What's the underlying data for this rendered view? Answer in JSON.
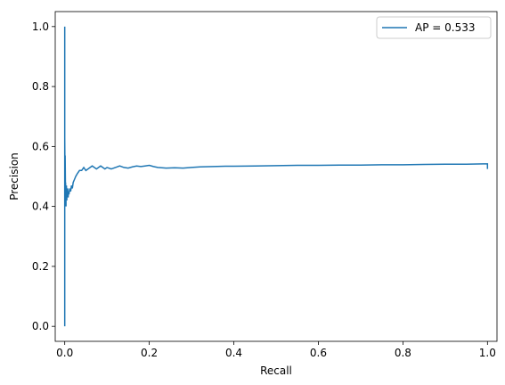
{
  "chart_data": {
    "type": "line",
    "title": "",
    "xlabel": "Recall",
    "ylabel": "Precision",
    "xlim": [
      -0.0225,
      1.0225
    ],
    "ylim": [
      -0.05,
      1.05
    ],
    "xticks": [
      0.0,
      0.2,
      0.4,
      0.6,
      0.8,
      1.0
    ],
    "xtick_labels": [
      "0.0",
      "0.2",
      "0.4",
      "0.6",
      "0.8",
      "1.0"
    ],
    "yticks": [
      0.0,
      0.2,
      0.4,
      0.6,
      0.8,
      1.0
    ],
    "ytick_labels": [
      "0.0",
      "0.2",
      "0.4",
      "0.6",
      "0.8",
      "1.0"
    ],
    "grid": false,
    "legend": {
      "position": "top-right",
      "entries": [
        "AP = 0.533"
      ]
    },
    "series": [
      {
        "name": "AP = 0.533",
        "color": "#1f77b4",
        "x": [
          0,
          0,
          0,
          0,
          0.001,
          0.001,
          0.002,
          0.002,
          0.003,
          0.003,
          0.004,
          0.004,
          0.005,
          0.005,
          0.006,
          0.007,
          0.008,
          0.009,
          0.01,
          0.012,
          0.014,
          0.016,
          0.018,
          0.02,
          0.023,
          0.026,
          0.03,
          0.035,
          0.04,
          0.045,
          0.05,
          0.055,
          0.06,
          0.065,
          0.07,
          0.075,
          0.08,
          0.085,
          0.09,
          0.095,
          0.1,
          0.11,
          0.12,
          0.13,
          0.14,
          0.15,
          0.16,
          0.17,
          0.18,
          0.19,
          0.2,
          0.21,
          0.22,
          0.24,
          0.26,
          0.28,
          0.3,
          0.32,
          0.35,
          0.38,
          0.4,
          0.45,
          0.5,
          0.55,
          0.6,
          0.65,
          0.7,
          0.75,
          0.8,
          0.85,
          0.9,
          0.95,
          0.99,
          1.0,
          1.0
        ],
        "y": [
          1.0,
          0.0,
          0.5,
          0.63,
          0.45,
          0.57,
          0.42,
          0.48,
          0.4,
          0.46,
          0.43,
          0.47,
          0.42,
          0.45,
          0.44,
          0.46,
          0.43,
          0.45,
          0.44,
          0.46,
          0.45,
          0.47,
          0.46,
          0.48,
          0.49,
          0.5,
          0.51,
          0.52,
          0.52,
          0.53,
          0.52,
          0.525,
          0.53,
          0.535,
          0.53,
          0.525,
          0.53,
          0.535,
          0.53,
          0.525,
          0.53,
          0.525,
          0.53,
          0.535,
          0.53,
          0.528,
          0.532,
          0.535,
          0.533,
          0.535,
          0.537,
          0.533,
          0.53,
          0.528,
          0.529,
          0.528,
          0.53,
          0.532,
          0.533,
          0.534,
          0.534,
          0.535,
          0.536,
          0.537,
          0.537,
          0.538,
          0.538,
          0.539,
          0.539,
          0.54,
          0.541,
          0.541,
          0.542,
          0.542,
          0.525
        ]
      }
    ]
  }
}
